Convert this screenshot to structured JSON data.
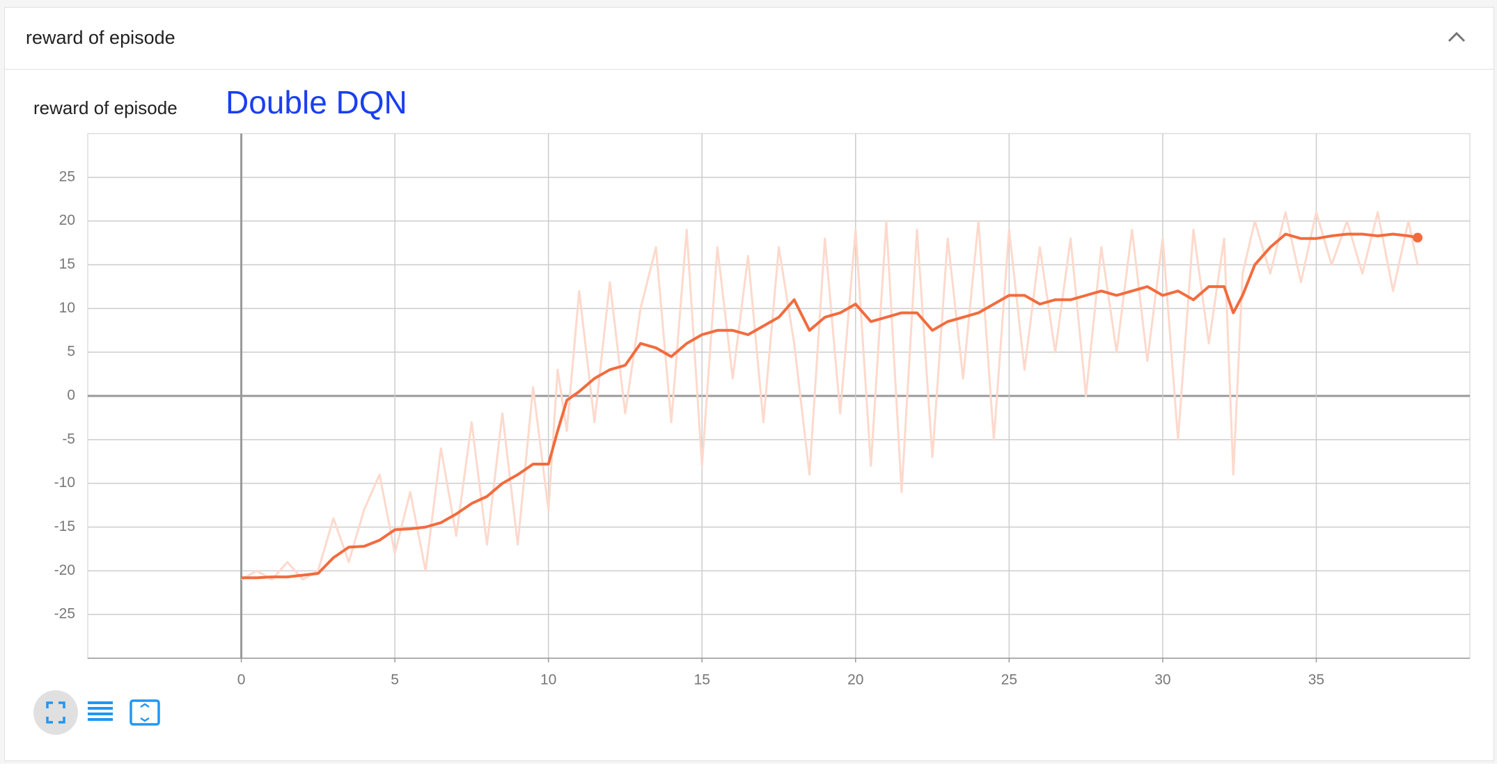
{
  "card": {
    "title": "reward of episode"
  },
  "chart_data": {
    "type": "line",
    "title": "reward of episode",
    "annotation": "Double DQN",
    "x": [
      0,
      0.5,
      1,
      1.5,
      2,
      2.5,
      3,
      3.5,
      4,
      4.5,
      5,
      5.5,
      6,
      6.5,
      7,
      7.5,
      8,
      8.5,
      9,
      9.5,
      10,
      10.3,
      10.6,
      11,
      11.5,
      12,
      12.5,
      13,
      13.5,
      14,
      14.5,
      15,
      15.5,
      16,
      16.5,
      17,
      17.5,
      18,
      18.5,
      19,
      19.5,
      20,
      20.5,
      21,
      21.5,
      22,
      22.5,
      23,
      23.5,
      24,
      24.5,
      25,
      25.5,
      26,
      26.5,
      27,
      27.5,
      28,
      28.5,
      29,
      29.5,
      30,
      30.5,
      31,
      31.5,
      32,
      32.3,
      32.6,
      33,
      33.5,
      34,
      34.5,
      35,
      35.5,
      36,
      36.5,
      37,
      37.5,
      38,
      38.3
    ],
    "series": [
      {
        "color": "#fdd9cc",
        "values": [
          -21,
          -20,
          -21,
          -19,
          -21,
          -20,
          -14,
          -19,
          -13,
          -9,
          -18,
          -11,
          -20,
          -6,
          -16,
          -3,
          -17,
          -2,
          -17,
          1,
          -13,
          3,
          -4,
          12,
          -3,
          13,
          -2,
          10,
          17,
          -3,
          19,
          -8,
          17,
          2,
          16,
          -3,
          17,
          6,
          -9,
          18,
          -2,
          19,
          -8,
          20,
          -11,
          19,
          -7,
          18,
          2,
          20,
          -5,
          19,
          3,
          17,
          5,
          18,
          0,
          17,
          5,
          19,
          4,
          18,
          -5,
          19,
          6,
          18,
          -9,
          14,
          20,
          14,
          21,
          13,
          21,
          15,
          20,
          14,
          21,
          12,
          20,
          15
        ]
      },
      {
        "color": "#f26b3d",
        "values": [
          -20.8,
          -20.8,
          -20.7,
          -20.7,
          -20.5,
          -20.3,
          -18.5,
          -17.3,
          -17.2,
          -16.5,
          -15.3,
          -15.2,
          -15,
          -14.5,
          -13.5,
          -12.3,
          -11.5,
          -10,
          -9,
          -7.8,
          -7.8,
          -4,
          -0.5,
          0.5,
          2,
          3,
          3.5,
          6,
          5.5,
          4.5,
          6,
          7,
          7.5,
          7.5,
          7,
          8,
          9,
          11,
          7.5,
          9,
          9.5,
          10.5,
          8.5,
          9,
          9.5,
          9.5,
          7.5,
          8.5,
          9,
          9.5,
          10.5,
          11.5,
          11.5,
          10.5,
          11,
          11,
          11.5,
          12,
          11.5,
          12,
          12.5,
          11.5,
          12,
          11,
          12.5,
          12.5,
          9.5,
          11.5,
          15,
          17,
          18.5,
          18,
          18,
          18.3,
          18.5,
          18.5,
          18.3,
          18.5,
          18.3,
          18.1
        ]
      }
    ],
    "xlim": [
      -5,
      40
    ],
    "ylim": [
      -30,
      30
    ],
    "xticks": [
      0,
      5,
      10,
      15,
      20,
      25,
      30,
      35
    ],
    "yticks": [
      -25,
      -20,
      -15,
      -10,
      -5,
      0,
      5,
      10,
      15,
      20,
      25
    ],
    "grid": true,
    "annotation_color": "#1a3ff0"
  }
}
